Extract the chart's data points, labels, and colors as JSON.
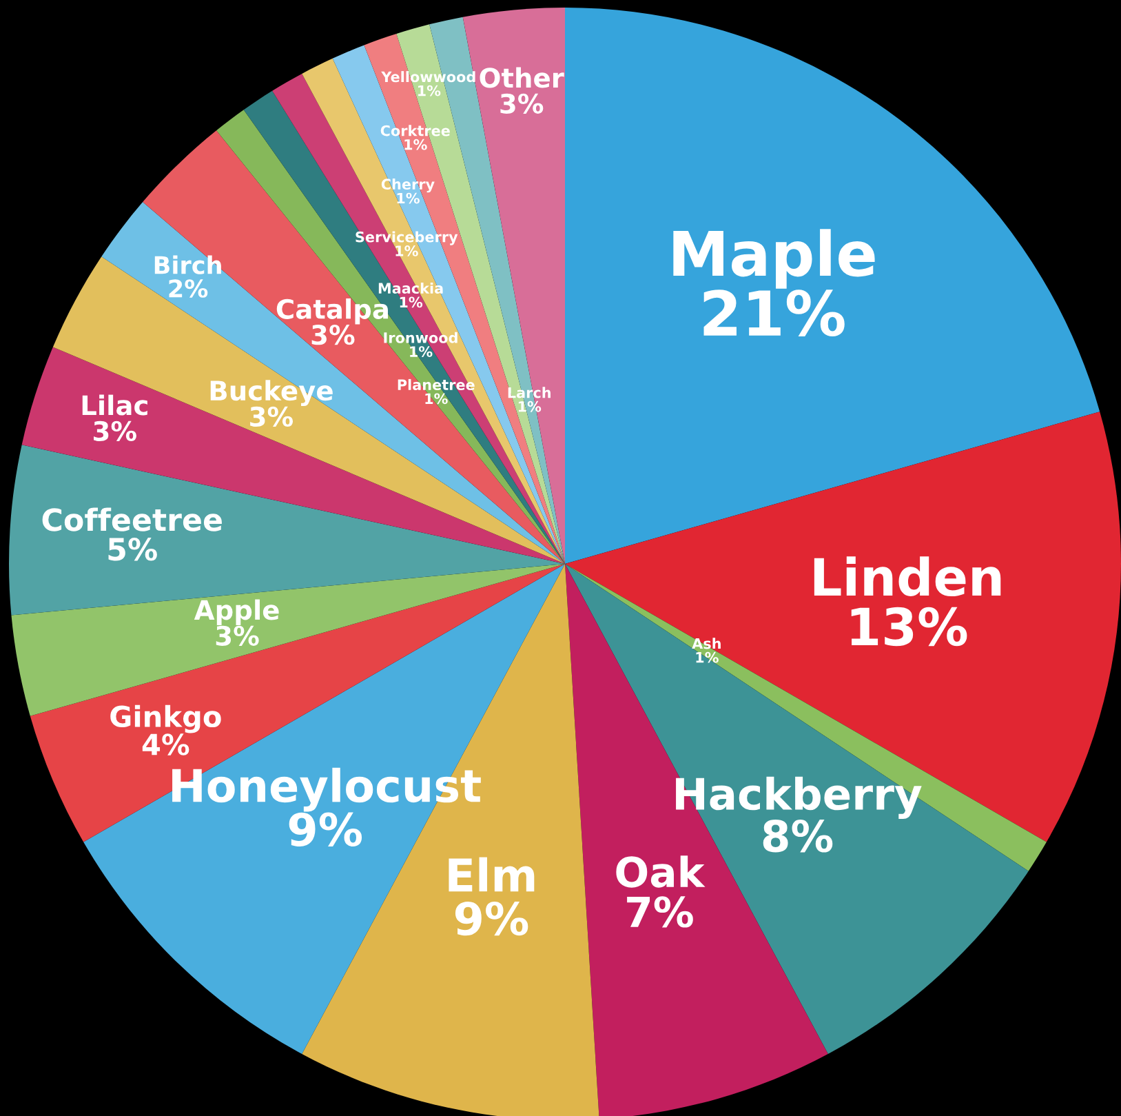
{
  "chart_data": {
    "type": "pie",
    "categories": [
      "Maple",
      "Linden",
      "Ash",
      "Hackberry",
      "Oak",
      "Elm",
      "Honeylocust",
      "Ginkgo",
      "Apple",
      "Coffeetree",
      "Lilac",
      "Buckeye",
      "Birch",
      "Catalpa",
      "Planetree",
      "Ironwood",
      "Maackia",
      "Serviceberry",
      "Cherry",
      "Corktree",
      "Yellowwood",
      "Larch",
      "Other"
    ],
    "values": [
      21,
      13,
      1,
      8,
      7,
      9,
      9,
      4,
      3,
      5,
      3,
      3,
      2,
      3,
      1,
      1,
      1,
      1,
      1,
      1,
      1,
      1,
      3
    ],
    "value_labels": [
      "21%",
      "13%",
      "1%",
      "8%",
      "7%",
      "9%",
      "9%",
      "4%",
      "3%",
      "5%",
      "3%",
      "3%",
      "2%",
      "3%",
      "1%",
      "1%",
      "1%",
      "1%",
      "1%",
      "1%",
      "1%",
      "1%",
      "3%"
    ],
    "colors": [
      "#36a4dc",
      "#e12632",
      "#8bbf5e",
      "#3d9396",
      "#c21f5e",
      "#dfb54b",
      "#4aaede",
      "#e64447",
      "#92c46a",
      "#52a3a5",
      "#cb376d",
      "#e2bf5c",
      "#6ec0e6",
      "#e85b60",
      "#86b85a",
      "#2f7d80",
      "#cc3f74",
      "#e8c76c",
      "#86c9ee",
      "#f07e80",
      "#b7db97",
      "#7fc0c4",
      "#d86e98"
    ],
    "legend": false
  }
}
